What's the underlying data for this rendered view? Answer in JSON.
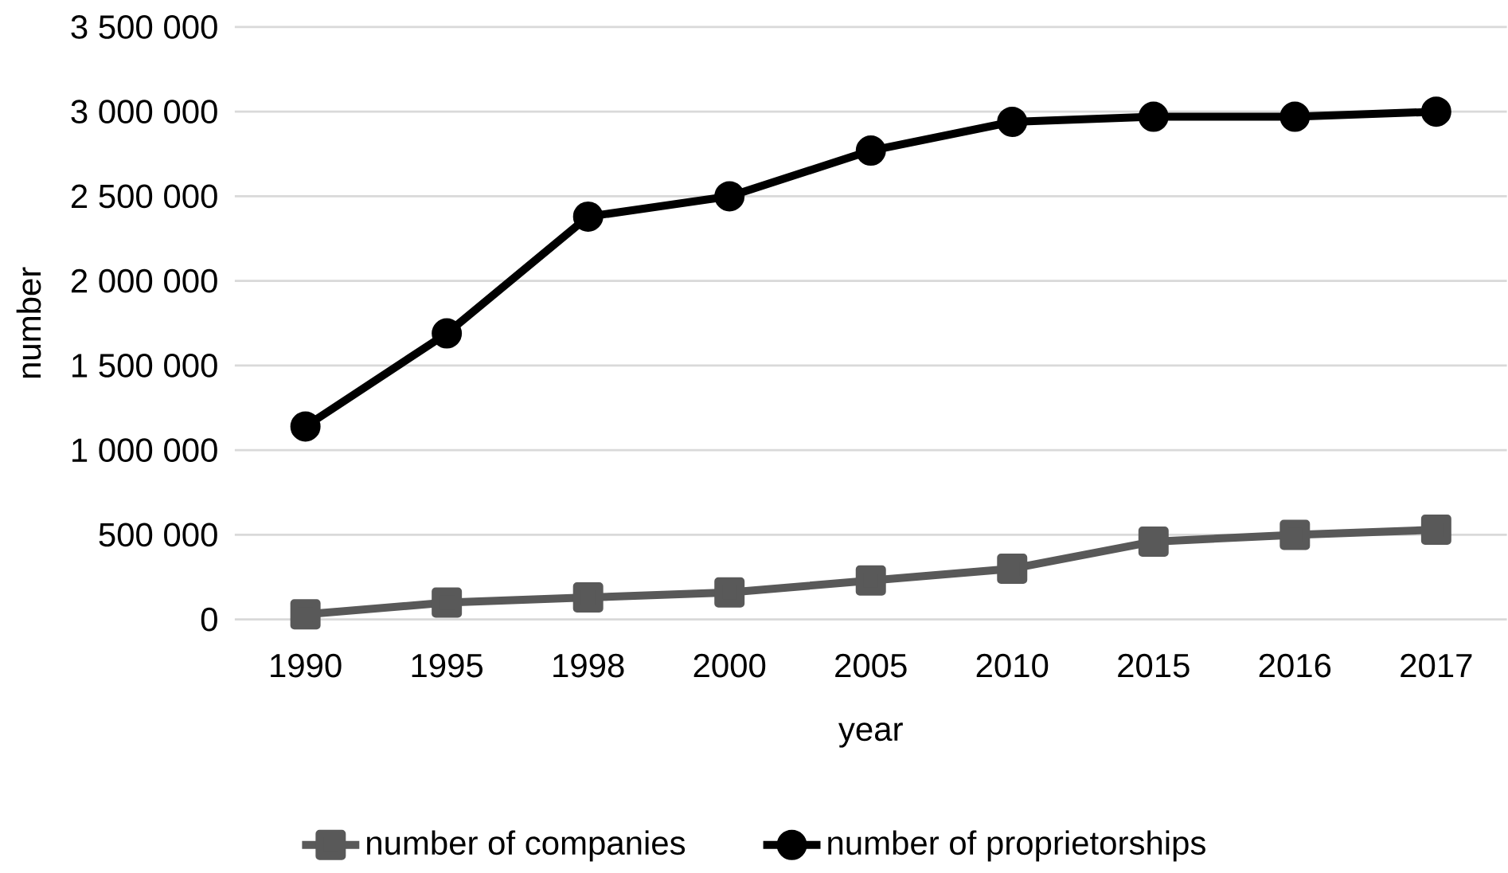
{
  "chart_data": {
    "type": "line",
    "xlabel": "year",
    "ylabel": "number",
    "categories": [
      "1990",
      "1995",
      "1998",
      "2000",
      "2005",
      "2010",
      "2015",
      "2016",
      "2017"
    ],
    "ylim": [
      0,
      3500000
    ],
    "yticks": [
      0,
      {
        "value": 500000,
        "label": "500 000"
      },
      {
        "value": 1000000,
        "label": "1 000 000"
      },
      {
        "value": 1500000,
        "label": "1 500 000"
      },
      {
        "value": 2000000,
        "label": "2 000 000"
      },
      {
        "value": 2500000,
        "label": "2 500 000"
      },
      {
        "value": 3000000,
        "label": "3 000 000"
      },
      {
        "value": 3500000,
        "label": "3 500 000"
      }
    ],
    "grid": "y",
    "legend": "bottom",
    "series": [
      {
        "name": "number of companies",
        "color": "#595959",
        "marker": "square",
        "values": [
          30000,
          100000,
          130000,
          160000,
          230000,
          300000,
          460000,
          500000,
          530000
        ]
      },
      {
        "name": "number of proprietorships",
        "color": "#000000",
        "marker": "circle",
        "values": [
          1140000,
          1690000,
          2380000,
          2500000,
          2770000,
          2940000,
          2970000,
          2970000,
          3000000
        ]
      }
    ]
  }
}
